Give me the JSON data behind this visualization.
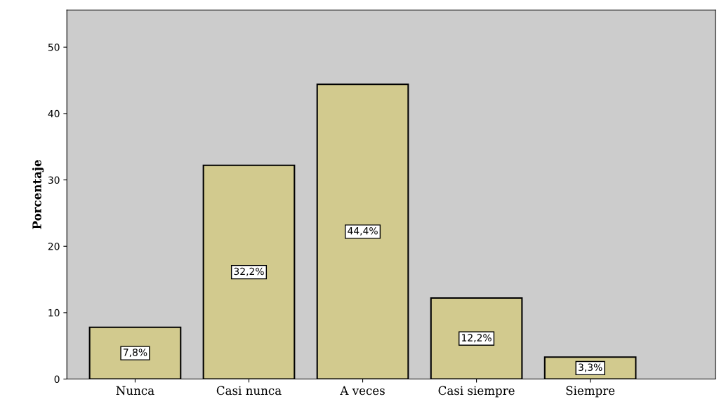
{
  "chart_data": {
    "type": "bar",
    "ylabel": "Porcentaje",
    "categories": [
      "Nunca",
      "Casi nunca",
      "A veces",
      "Casi siempre",
      "Siempre"
    ],
    "values": [
      7.8,
      32.2,
      44.4,
      12.2,
      3.3
    ],
    "value_labels": [
      "7,8%",
      "32,2%",
      "44,4%",
      "12,2%",
      "3,3%"
    ],
    "color": "#d2ca8e",
    "ylim": [
      0,
      55.6
    ],
    "yticks": [
      0,
      10,
      20,
      30,
      40,
      50
    ],
    "grid": false,
    "legend": false
  }
}
